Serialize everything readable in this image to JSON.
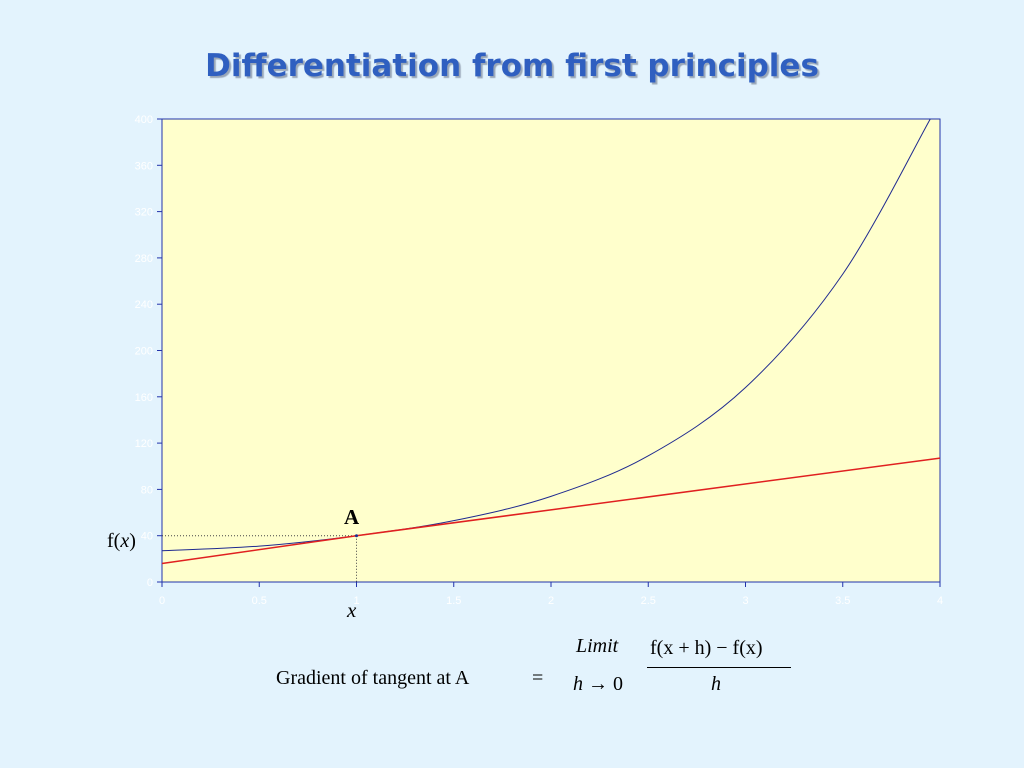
{
  "title": "Differentiation from first principles",
  "labels": {
    "point": "A",
    "fx_prefix": "f(",
    "fx_var": "x",
    "fx_suffix": ")",
    "x_marker": "x"
  },
  "formula": {
    "text": "Gradient of tangent at A",
    "equals": "=",
    "limit_word": "Limit",
    "limit_var": "h",
    "limit_arrow": "→",
    "limit_value": "0",
    "numerator": "f(x + h) − f(x)",
    "denominator": "h"
  },
  "colors": {
    "plot_bg": "#ffffcc",
    "curve": "#1f2a8f",
    "tangent": "#e02020",
    "axis": "#2233aa"
  },
  "chart_data": {
    "type": "line",
    "xlim": [
      0,
      4
    ],
    "ylim": [
      0,
      400
    ],
    "xticks": [
      0,
      0.5,
      1,
      1.5,
      2,
      2.5,
      3,
      3.5,
      4
    ],
    "yticks": [
      0,
      40,
      80,
      120,
      160,
      200,
      240,
      280,
      320,
      360,
      400
    ],
    "grid": false,
    "series": [
      {
        "points": [
          [
            0,
            27
          ],
          [
            0.5,
            31
          ],
          [
            1,
            40
          ],
          [
            1.5,
            53
          ],
          [
            2,
            74
          ],
          [
            2.5,
            109
          ],
          [
            3,
            168
          ],
          [
            3.5,
            266
          ],
          [
            3.95,
            400
          ]
        ]
      },
      {
        "points": [
          [
            0,
            16
          ],
          [
            1,
            40
          ],
          [
            4,
            107
          ]
        ]
      }
    ],
    "point_A": {
      "x": 1,
      "y": 40
    }
  }
}
